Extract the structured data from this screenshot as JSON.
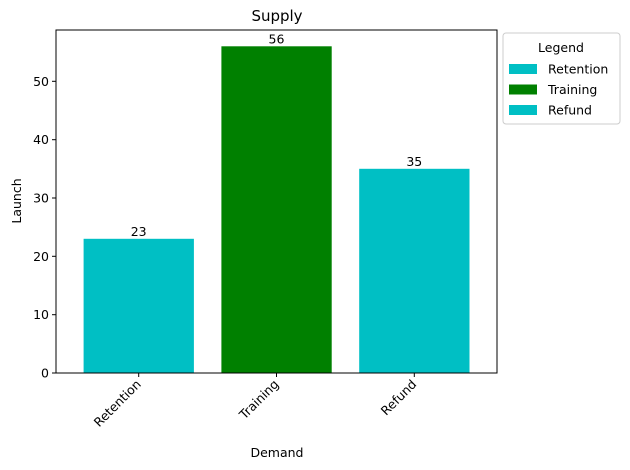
{
  "chart_data": {
    "type": "bar",
    "title": "Supply",
    "xlabel": "Demand",
    "ylabel": "Launch",
    "categories": [
      "Retention",
      "Training",
      "Refund"
    ],
    "values": [
      23,
      56,
      35
    ],
    "bar_colors": [
      "#00bfc4",
      "#008000",
      "#00bfc4"
    ],
    "data_labels": [
      "23",
      "56",
      "35"
    ],
    "ylim": [
      0,
      58.8
    ],
    "yticks": [
      0,
      10,
      20,
      30,
      40,
      50
    ],
    "grid": false,
    "legend": {
      "title": "Legend",
      "placement": "outside-top-right",
      "entries": [
        {
          "label": "Retention",
          "color": "#00bfc4"
        },
        {
          "label": "Training",
          "color": "#008000"
        },
        {
          "label": "Refund",
          "color": "#00bfc4"
        }
      ]
    }
  }
}
